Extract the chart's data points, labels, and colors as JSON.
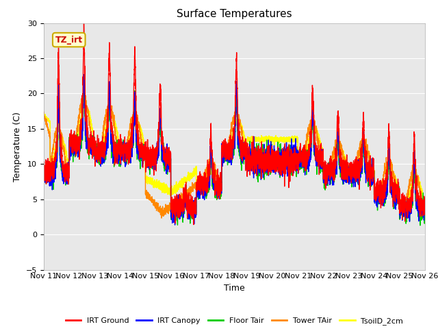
{
  "title": "Surface Temperatures",
  "xlabel": "Time",
  "ylabel": "Temperature (C)",
  "ylim": [
    -5,
    30
  ],
  "xlim": [
    0,
    15
  ],
  "annotation_text": "TZ_irt",
  "annotation_bg": "#ffffcc",
  "annotation_edge": "#ccaa00",
  "annotation_color": "#cc0000",
  "plot_bg": "#e8e8e8",
  "fig_bg": "#ffffff",
  "series_order": [
    "TsoilD_2cm",
    "Tower TAir",
    "Floor Tair",
    "IRT Canopy",
    "IRT Ground"
  ],
  "series": {
    "IRT Ground": {
      "color": "#ff0000",
      "lw": 1.0
    },
    "IRT Canopy": {
      "color": "#0000ff",
      "lw": 1.0
    },
    "Floor Tair": {
      "color": "#00cc00",
      "lw": 1.0
    },
    "Tower TAir": {
      "color": "#ff8800",
      "lw": 1.0
    },
    "TsoilD_2cm": {
      "color": "#ffff00",
      "lw": 1.2
    }
  },
  "xtick_labels": [
    "Nov 11",
    "Nov 12",
    "Nov 13",
    "Nov 14",
    "Nov 15",
    "Nov 16",
    "Nov 17",
    "Nov 18",
    "Nov 19",
    "Nov 20",
    "Nov 21",
    "Nov 22",
    "Nov 23",
    "Nov 24",
    "Nov 25",
    "Nov 26"
  ],
  "ytick_values": [
    -5,
    0,
    5,
    10,
    15,
    20,
    25,
    30
  ],
  "grid_color": "#ffffff",
  "legend_labels": [
    "IRT Ground",
    "IRT Canopy",
    "Floor Tair",
    "Tower TAir",
    "TsoilD_2cm"
  ],
  "n_points": 4320,
  "days": 15
}
